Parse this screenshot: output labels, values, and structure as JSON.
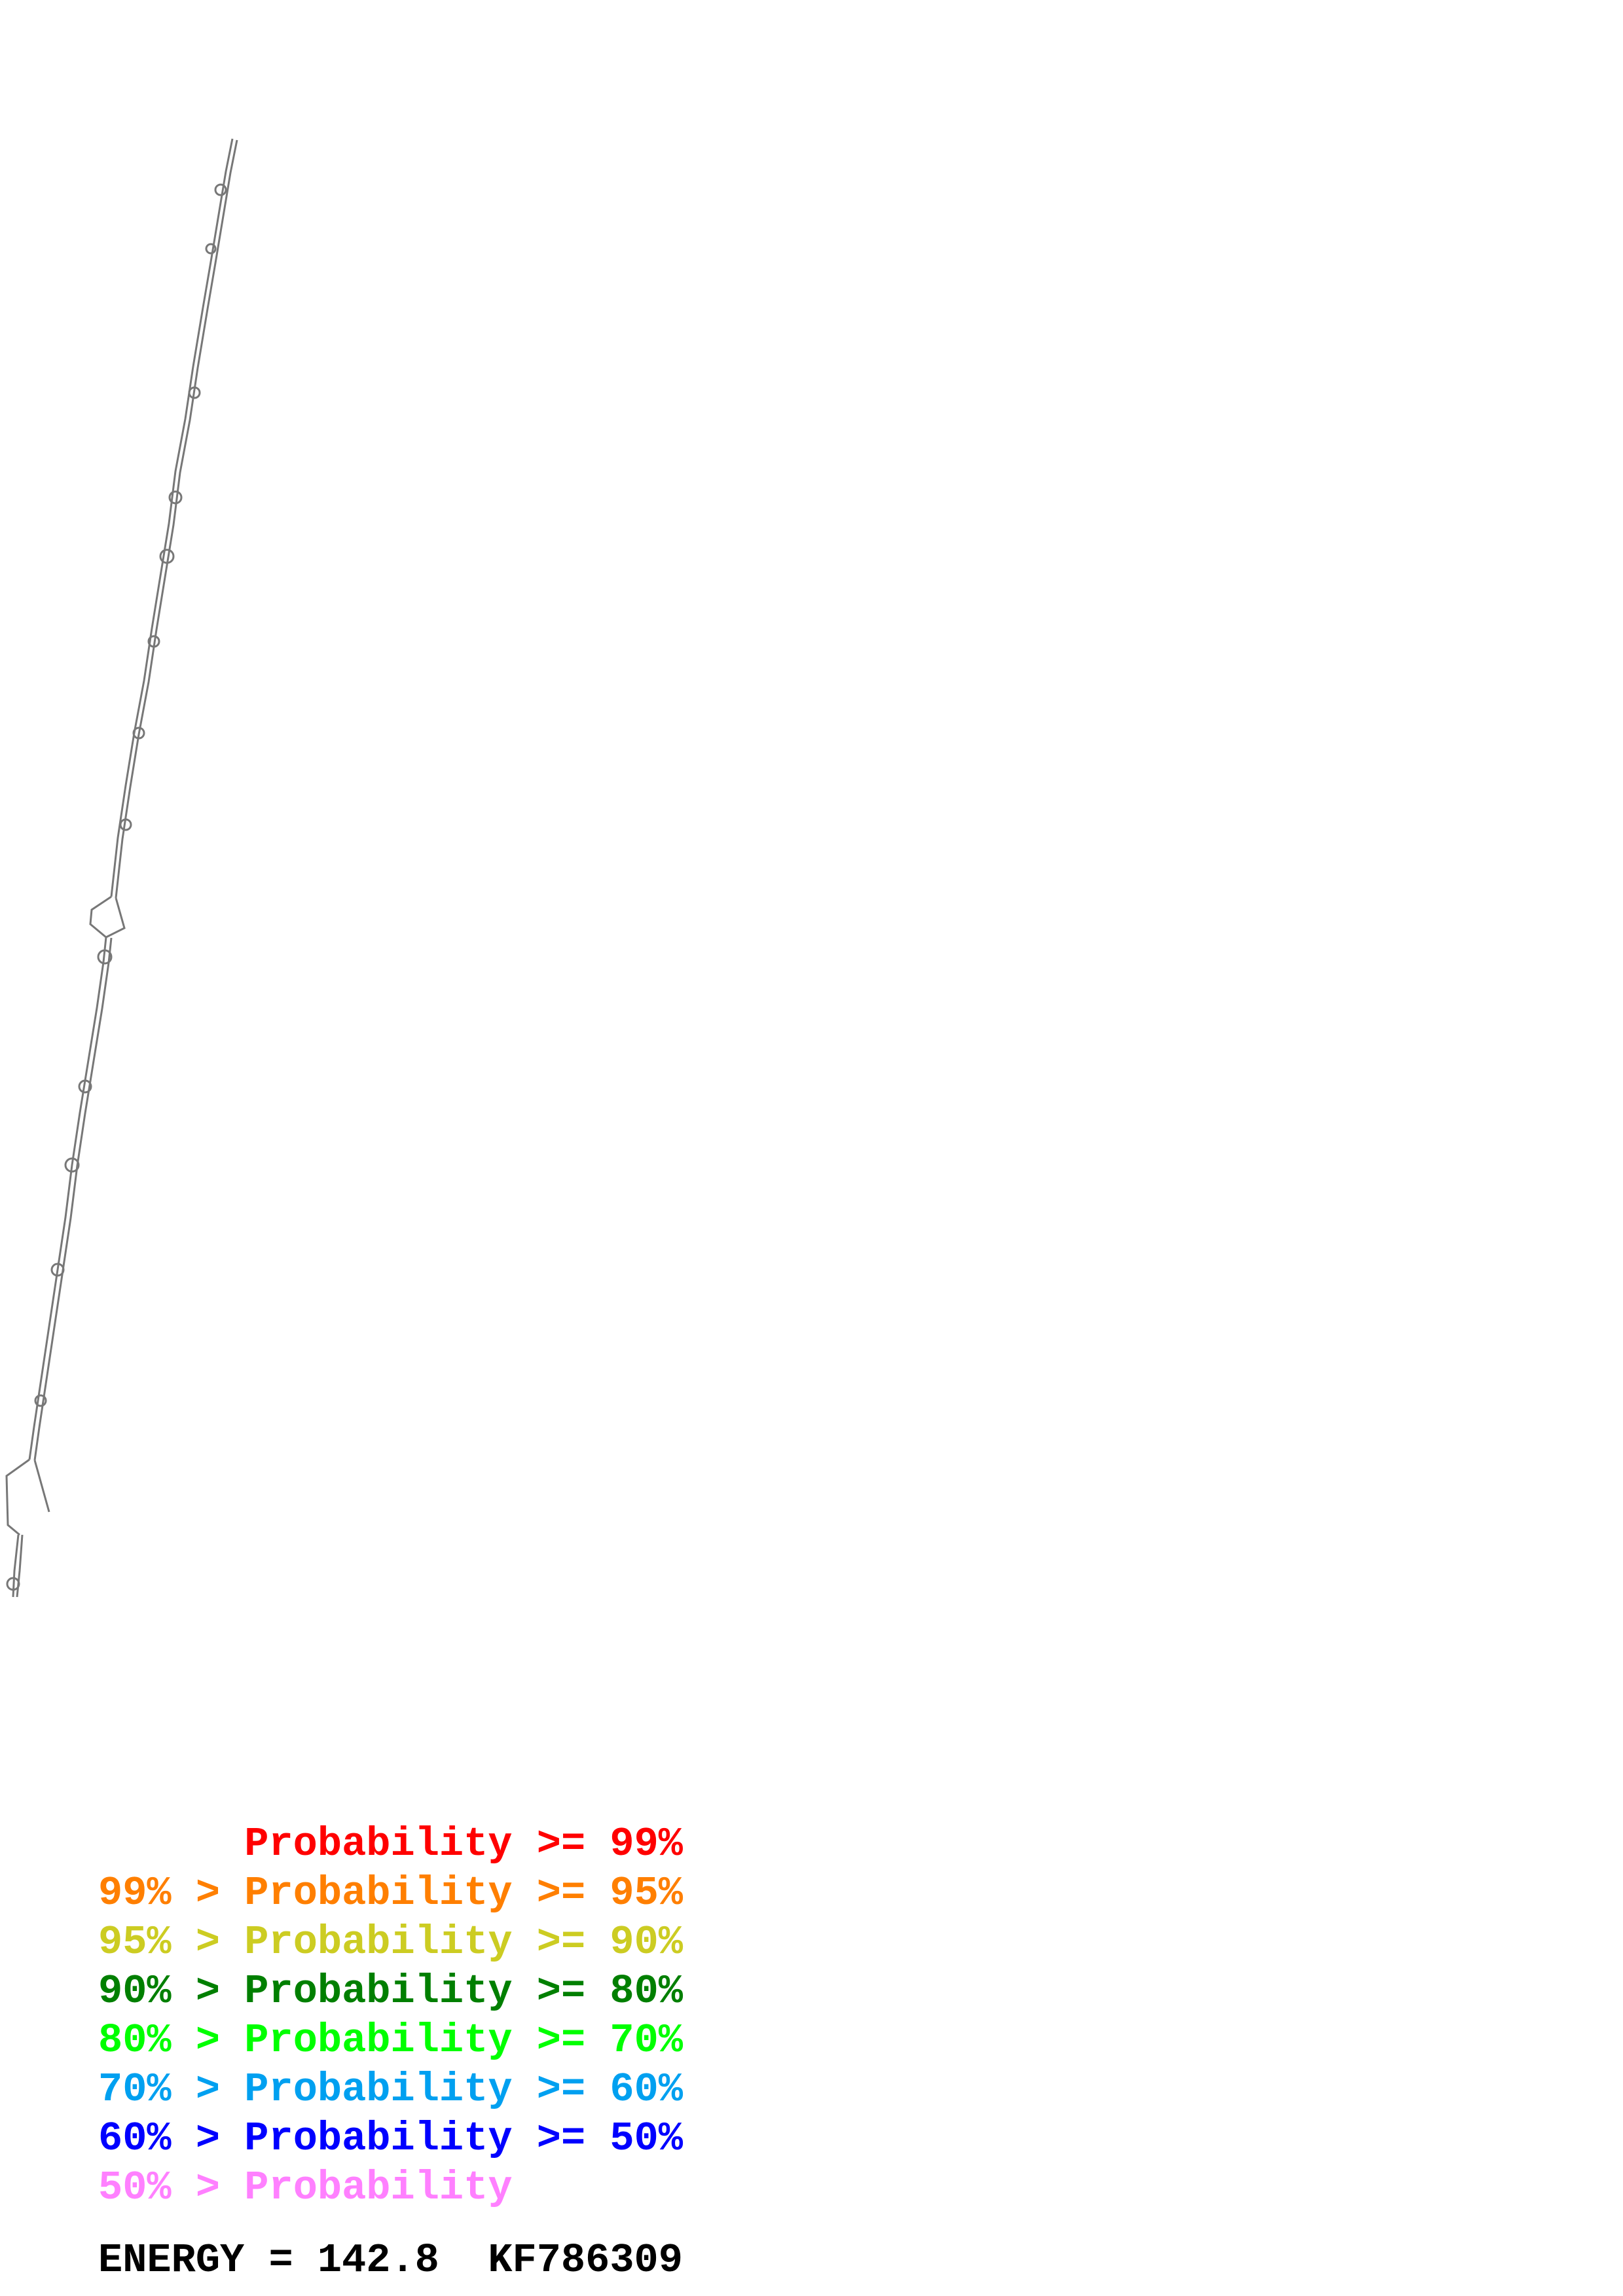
{
  "legend": {
    "rows": [
      {
        "low": "",
        "gt": "",
        "word": "Probability",
        "ge": ">=",
        "high": "99%",
        "color": "#ff0000"
      },
      {
        "low": "99%",
        "gt": ">",
        "word": "Probability",
        "ge": ">=",
        "high": "95%",
        "color": "#ff7f00"
      },
      {
        "low": "95%",
        "gt": ">",
        "word": "Probability",
        "ge": ">=",
        "high": "90%",
        "color": "#cccc22"
      },
      {
        "low": "90%",
        "gt": ">",
        "word": "Probability",
        "ge": ">=",
        "high": "80%",
        "color": "#007f00"
      },
      {
        "low": "80%",
        "gt": ">",
        "word": "Probability",
        "ge": ">=",
        "high": "70%",
        "color": "#00ff00"
      },
      {
        "low": "70%",
        "gt": ">",
        "word": "Probability",
        "ge": ">=",
        "high": "60%",
        "color": "#00a0f0"
      },
      {
        "low": "60%",
        "gt": ">",
        "word": "Probability",
        "ge": ">=",
        "high": "50%",
        "color": "#0000ff"
      },
      {
        "low": "50%",
        "gt": ">",
        "word": "Probability",
        "ge": "",
        "high": "",
        "color": "#ff80ff"
      }
    ]
  },
  "footer": {
    "energy_label": "ENERGY = 142.8",
    "sequence_id": "KF786309"
  },
  "structure": {
    "stroke_color": "#777777"
  }
}
